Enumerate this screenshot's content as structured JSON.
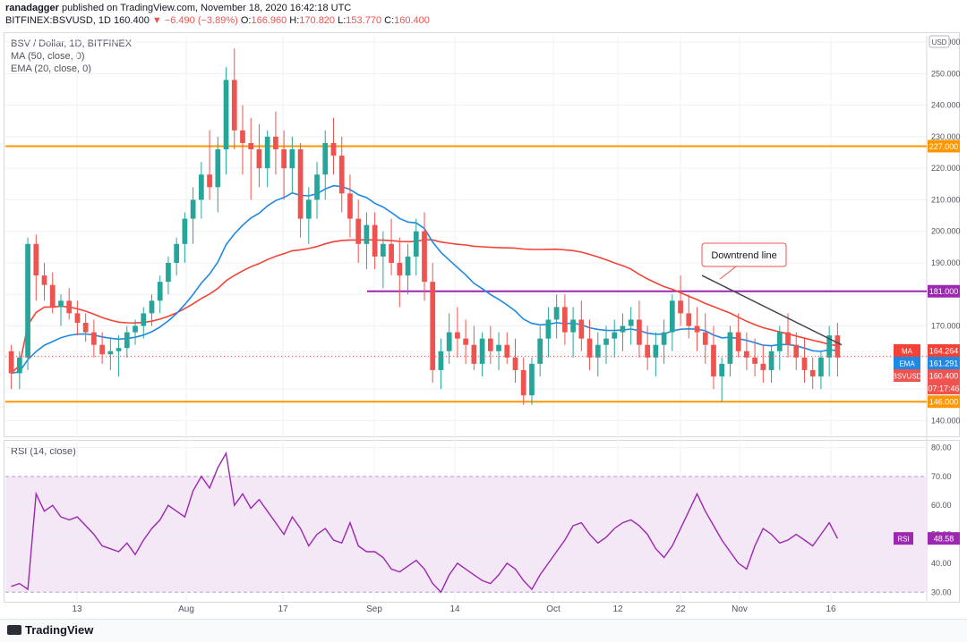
{
  "header": {
    "author": "ranadagger",
    "published": "published on TradingView.com, November 18, 2020 16:42:18 UTC",
    "symbol": "BITFINEX:BSVUSD, 1D",
    "last": "160.400",
    "change": "▼ −6.490 (−3.89%)",
    "open_label": "O:",
    "open": "166.960",
    "high_label": "H:",
    "high": "170.820",
    "low_label": "L:",
    "low": "153.770",
    "close_label": "C:",
    "close": "160.400"
  },
  "legend": {
    "title": "BSV / Dollar, 1D, BITFINEX",
    "ma": "MA (50, close, 0)",
    "ema": "EMA (20, close, 0)",
    "rsi": "RSI (14, close)"
  },
  "currency_badge": "USD",
  "chart_data": [
    {
      "type": "candlestick",
      "x_labels": [
        "13",
        "Aug",
        "17",
        "Sep",
        "14",
        "Oct",
        "12",
        "22",
        "Nov",
        "16"
      ],
      "y_ticks": [
        "140.000",
        "150.000",
        "160.000",
        "170.000",
        "180.000",
        "190.000",
        "200.000",
        "210.000",
        "220.000",
        "230.000",
        "240.000",
        "250.000",
        "260.000"
      ],
      "ylim": [
        135,
        262
      ],
      "ohlc": [
        [
          162,
          164,
          150,
          155
        ],
        [
          155,
          162,
          150,
          160
        ],
        [
          160,
          198,
          156,
          196
        ],
        [
          196,
          199,
          178,
          186
        ],
        [
          186,
          190,
          178,
          183
        ],
        [
          183,
          187,
          174,
          176
        ],
        [
          176,
          180,
          170,
          178
        ],
        [
          178,
          182,
          172,
          174
        ],
        [
          174,
          178,
          167,
          171
        ],
        [
          171,
          174,
          165,
          168
        ],
        [
          168,
          172,
          160,
          164
        ],
        [
          164,
          168,
          158,
          161
        ],
        [
          161,
          166,
          156,
          162
        ],
        [
          162,
          167,
          154,
          163
        ],
        [
          163,
          170,
          160,
          168
        ],
        [
          168,
          172,
          164,
          170
        ],
        [
          170,
          176,
          166,
          174
        ],
        [
          174,
          180,
          170,
          178
        ],
        [
          178,
          186,
          174,
          184
        ],
        [
          184,
          192,
          180,
          190
        ],
        [
          190,
          198,
          186,
          196
        ],
        [
          196,
          206,
          190,
          204
        ],
        [
          204,
          214,
          196,
          210
        ],
        [
          210,
          222,
          204,
          218
        ],
        [
          218,
          232,
          210,
          214
        ],
        [
          214,
          230,
          206,
          226
        ],
        [
          226,
          252,
          218,
          248
        ],
        [
          248,
          258,
          226,
          232
        ],
        [
          232,
          240,
          218,
          228
        ],
        [
          228,
          236,
          210,
          226
        ],
        [
          226,
          234,
          214,
          220
        ],
        [
          220,
          232,
          214,
          230
        ],
        [
          230,
          238,
          218,
          226
        ],
        [
          226,
          232,
          210,
          220
        ],
        [
          220,
          230,
          212,
          226
        ],
        [
          226,
          228,
          198,
          204
        ],
        [
          204,
          214,
          196,
          210
        ],
        [
          210,
          222,
          204,
          218
        ],
        [
          218,
          232,
          210,
          228
        ],
        [
          228,
          236,
          218,
          224
        ],
        [
          224,
          230,
          206,
          212
        ],
        [
          212,
          218,
          198,
          204
        ],
        [
          204,
          210,
          190,
          196
        ],
        [
          196,
          206,
          188,
          202
        ],
        [
          202,
          206,
          188,
          192
        ],
        [
          192,
          200,
          182,
          196
        ],
        [
          196,
          204,
          186,
          190
        ],
        [
          190,
          198,
          176,
          186
        ],
        [
          186,
          196,
          180,
          192
        ],
        [
          192,
          204,
          186,
          200
        ],
        [
          200,
          206,
          178,
          184
        ],
        [
          184,
          190,
          152,
          156
        ],
        [
          156,
          166,
          150,
          162
        ],
        [
          162,
          174,
          158,
          168
        ],
        [
          168,
          176,
          160,
          166
        ],
        [
          166,
          172,
          158,
          164
        ],
        [
          164,
          170,
          156,
          158
        ],
        [
          158,
          168,
          154,
          166
        ],
        [
          166,
          170,
          158,
          162
        ],
        [
          162,
          168,
          156,
          164
        ],
        [
          164,
          168,
          158,
          160
        ],
        [
          160,
          166,
          152,
          156
        ],
        [
          156,
          160,
          145,
          148
        ],
        [
          148,
          160,
          145,
          158
        ],
        [
          158,
          170,
          154,
          166
        ],
        [
          166,
          176,
          160,
          172
        ],
        [
          172,
          180,
          166,
          176
        ],
        [
          176,
          180,
          164,
          168
        ],
        [
          168,
          176,
          160,
          172
        ],
        [
          172,
          178,
          162,
          166
        ],
        [
          166,
          172,
          156,
          160
        ],
        [
          160,
          168,
          154,
          164
        ],
        [
          164,
          170,
          158,
          166
        ],
        [
          166,
          172,
          160,
          168
        ],
        [
          168,
          174,
          162,
          170
        ],
        [
          170,
          176,
          164,
          172
        ],
        [
          172,
          178,
          160,
          164
        ],
        [
          164,
          170,
          156,
          160
        ],
        [
          160,
          168,
          154,
          164
        ],
        [
          164,
          172,
          158,
          168
        ],
        [
          168,
          180,
          162,
          178
        ],
        [
          178,
          186,
          170,
          174
        ],
        [
          174,
          180,
          166,
          170
        ],
        [
          170,
          176,
          162,
          168
        ],
        [
          168,
          174,
          158,
          164
        ],
        [
          164,
          170,
          150,
          154
        ],
        [
          154,
          160,
          146,
          158
        ],
        [
          158,
          170,
          154,
          168
        ],
        [
          168,
          174,
          160,
          162
        ],
        [
          162,
          168,
          156,
          160
        ],
        [
          160,
          166,
          154,
          158
        ],
        [
          158,
          164,
          152,
          156
        ],
        [
          156,
          164,
          152,
          162
        ],
        [
          162,
          170,
          156,
          168
        ],
        [
          168,
          174,
          160,
          164
        ],
        [
          164,
          168,
          156,
          160
        ],
        [
          160,
          166,
          152,
          156
        ],
        [
          156,
          160,
          150,
          154
        ],
        [
          154,
          162,
          150,
          160
        ],
        [
          160,
          170,
          154,
          167
        ],
        [
          167,
          171,
          154,
          160
        ]
      ],
      "ma_50": {
        "name": "MA",
        "value": "164.264"
      },
      "ema_20": {
        "name": "EMA",
        "value": "161.291"
      },
      "last_price": {
        "name": "BSVUSD",
        "value": "160.400",
        "countdown": "07:17:46"
      },
      "horizontal_levels": [
        {
          "value": 227,
          "label": "227.000",
          "color": "#ff9800"
        },
        {
          "value": 181,
          "label": "181.000",
          "color": "#9c27b0"
        },
        {
          "value": 146,
          "label": "146.000",
          "color": "#ff9800"
        }
      ],
      "annotation": "Downtrend line",
      "colors": {
        "up": "#26a69a",
        "down": "#ef5350",
        "ma": "#f44336",
        "ema": "#1e88e5",
        "rsi": "#9c27b0"
      }
    },
    {
      "type": "line",
      "name": "RSI",
      "y_ticks": [
        "30.00",
        "40.00",
        "50.00",
        "60.00",
        "70.00",
        "80.00"
      ],
      "ylim": [
        27,
        82
      ],
      "band": [
        30,
        70
      ],
      "current": "48.58",
      "values": [
        32,
        33,
        31,
        64,
        58,
        60,
        56,
        55,
        56,
        53,
        50,
        46,
        45,
        44,
        47,
        43,
        48,
        52,
        55,
        60,
        58,
        56,
        65,
        70,
        66,
        73,
        78,
        60,
        64,
        59,
        62,
        58,
        54,
        50,
        56,
        52,
        46,
        50,
        52,
        48,
        47,
        54,
        46,
        44,
        44,
        42,
        38,
        37,
        39,
        41,
        38,
        33,
        30,
        36,
        40,
        38,
        36,
        34,
        33,
        36,
        40,
        38,
        34,
        31,
        36,
        40,
        44,
        48,
        53,
        54,
        50,
        47,
        49,
        52,
        54,
        55,
        53,
        50,
        45,
        42,
        46,
        52,
        58,
        64,
        58,
        53,
        48,
        44,
        40,
        38,
        46,
        52,
        50,
        47,
        48,
        50,
        48,
        46,
        50,
        54,
        48.58
      ]
    }
  ],
  "footer": {
    "brand": "TradingView"
  }
}
